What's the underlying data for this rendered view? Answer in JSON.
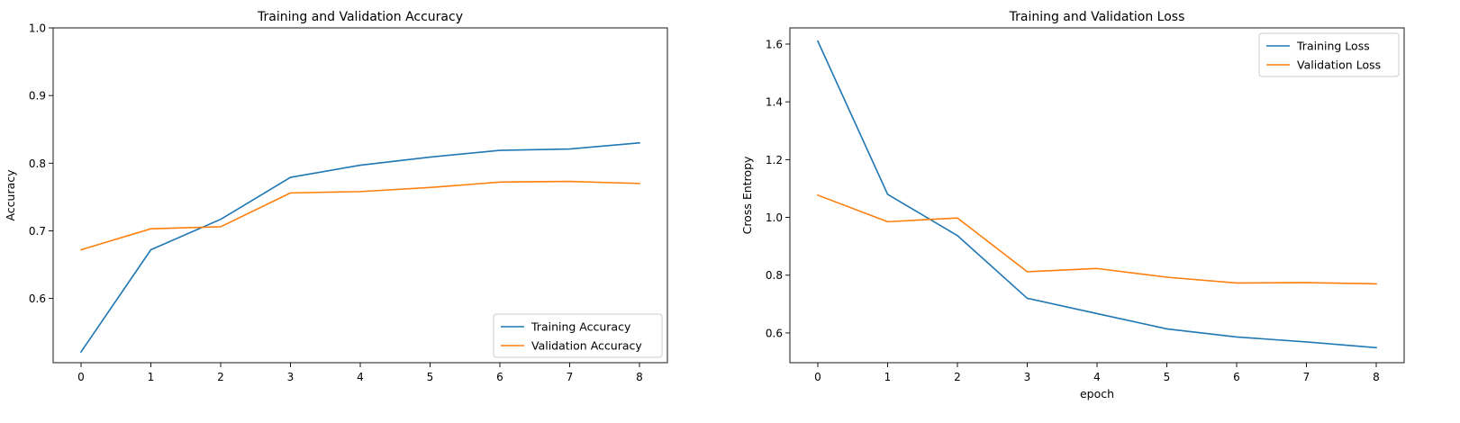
{
  "chart_data": [
    {
      "type": "line",
      "title": "Training and Validation Accuracy",
      "xlabel": "",
      "ylabel": "Accuracy",
      "x": [
        0,
        1,
        2,
        3,
        4,
        5,
        6,
        7,
        8
      ],
      "xlim": [
        -0.4,
        8.4
      ],
      "ylim": [
        0.505,
        1.0
      ],
      "xticks": [
        0,
        1,
        2,
        3,
        4,
        5,
        6,
        7,
        8
      ],
      "yticks": [
        0.6,
        0.7,
        0.8,
        0.9,
        1.0
      ],
      "ytick_labels": [
        "0.6",
        "0.7",
        "0.8",
        "0.9",
        "1.0"
      ],
      "grid": false,
      "legend_position": "bottom-right",
      "series": [
        {
          "name": "Training Accuracy",
          "color": "#1f77b4",
          "values": [
            0.521,
            0.672,
            0.717,
            0.779,
            0.797,
            0.809,
            0.819,
            0.821,
            0.83
          ]
        },
        {
          "name": "Validation Accuracy",
          "color": "#ff7f0e",
          "values": [
            0.672,
            0.703,
            0.706,
            0.756,
            0.758,
            0.764,
            0.772,
            0.773,
            0.77
          ]
        }
      ]
    },
    {
      "type": "line",
      "title": "Training and Validation Loss",
      "xlabel": "epoch",
      "ylabel": "Cross Entropy",
      "x": [
        0,
        1,
        2,
        3,
        4,
        5,
        6,
        7,
        8
      ],
      "xlim": [
        -0.4,
        8.4
      ],
      "ylim": [
        0.497,
        1.656
      ],
      "xticks": [
        0,
        1,
        2,
        3,
        4,
        5,
        6,
        7,
        8
      ],
      "yticks": [
        0.6,
        0.8,
        1.0,
        1.2,
        1.4,
        1.6
      ],
      "ytick_labels": [
        "0.6",
        "0.8",
        "1.0",
        "1.2",
        "1.4",
        "1.6"
      ],
      "grid": false,
      "legend_position": "top-right",
      "series": [
        {
          "name": "Training Loss",
          "color": "#1f77b4",
          "values": [
            1.61,
            1.08,
            0.937,
            0.72,
            0.667,
            0.614,
            0.586,
            0.569,
            0.549
          ]
        },
        {
          "name": "Validation Loss",
          "color": "#ff7f0e",
          "values": [
            1.077,
            0.985,
            0.998,
            0.812,
            0.823,
            0.793,
            0.773,
            0.774,
            0.77
          ]
        }
      ]
    }
  ]
}
